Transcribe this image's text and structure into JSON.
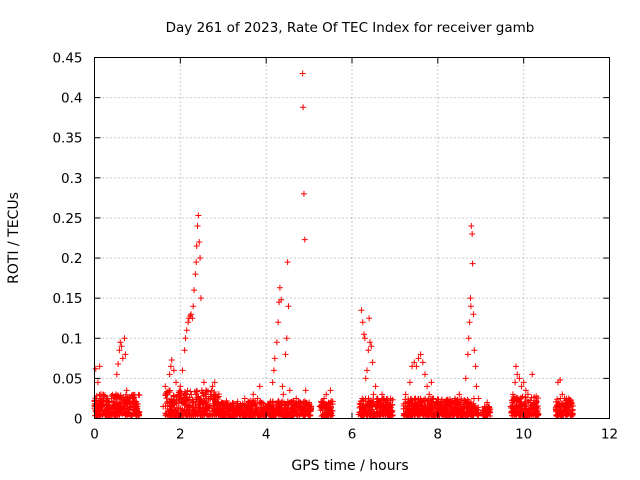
{
  "chart_data": {
    "type": "scatter",
    "title": "Day 261 of 2023, Rate Of TEC Index for receiver gamb",
    "xlabel": "GPS time / hours",
    "ylabel": "ROTI / TECUs",
    "xlim": [
      0,
      12
    ],
    "ylim": [
      0,
      0.45
    ],
    "xticks": [
      0,
      2,
      4,
      6,
      8,
      10,
      12
    ],
    "yticks": [
      0,
      0.05,
      0.1,
      0.15,
      0.2,
      0.25,
      0.3,
      0.35,
      0.4,
      0.45
    ],
    "xtick_labels": [
      "0",
      "2",
      "4",
      "6",
      "8",
      "10",
      "12"
    ],
    "ytick_labels": [
      "0",
      "0.05",
      "0.1",
      "0.15",
      "0.2",
      "0.25",
      "0.3",
      "0.35",
      "0.4",
      "0.45"
    ],
    "grid": true,
    "marker": "+",
    "color": "#ff0000",
    "series": [
      {
        "name": "ROTI",
        "points": [
          [
            0.0,
            0.012
          ],
          [
            0.03,
            0.062
          ],
          [
            0.05,
            0.025
          ],
          [
            0.08,
            0.045
          ],
          [
            0.1,
            0.018
          ],
          [
            0.12,
            0.065
          ],
          [
            0.15,
            0.03
          ],
          [
            0.18,
            0.015
          ],
          [
            0.22,
            0.022
          ],
          [
            0.25,
            0.01
          ],
          [
            0.3,
            0.018
          ],
          [
            0.35,
            0.012
          ],
          [
            0.4,
            0.025
          ],
          [
            0.45,
            0.015
          ],
          [
            0.5,
            0.03
          ],
          [
            0.52,
            0.055
          ],
          [
            0.55,
            0.068
          ],
          [
            0.58,
            0.085
          ],
          [
            0.6,
            0.095
          ],
          [
            0.63,
            0.09
          ],
          [
            0.66,
            0.075
          ],
          [
            0.7,
            0.1
          ],
          [
            0.72,
            0.08
          ],
          [
            0.75,
            0.035
          ],
          [
            0.8,
            0.02
          ],
          [
            0.85,
            0.015
          ],
          [
            0.9,
            0.025
          ],
          [
            0.95,
            0.02
          ],
          [
            1.0,
            0.015
          ],
          [
            1.6,
            0.015
          ],
          [
            1.65,
            0.04
          ],
          [
            1.7,
            0.03
          ],
          [
            1.75,
            0.055
          ],
          [
            1.78,
            0.065
          ],
          [
            1.8,
            0.073
          ],
          [
            1.85,
            0.06
          ],
          [
            1.9,
            0.045
          ],
          [
            1.95,
            0.03
          ],
          [
            2.0,
            0.04
          ],
          [
            2.05,
            0.06
          ],
          [
            2.1,
            0.085
          ],
          [
            2.12,
            0.1
          ],
          [
            2.15,
            0.11
          ],
          [
            2.18,
            0.12
          ],
          [
            2.2,
            0.125
          ],
          [
            2.23,
            0.128
          ],
          [
            2.25,
            0.13
          ],
          [
            2.28,
            0.125
          ],
          [
            2.3,
            0.14
          ],
          [
            2.32,
            0.16
          ],
          [
            2.35,
            0.18
          ],
          [
            2.37,
            0.195
          ],
          [
            2.38,
            0.215
          ],
          [
            2.4,
            0.24
          ],
          [
            2.42,
            0.253
          ],
          [
            2.44,
            0.22
          ],
          [
            2.46,
            0.2
          ],
          [
            2.48,
            0.15
          ],
          [
            2.5,
            0.035
          ],
          [
            2.55,
            0.045
          ],
          [
            2.6,
            0.035
          ],
          [
            2.65,
            0.025
          ],
          [
            2.7,
            0.03
          ],
          [
            2.75,
            0.04
          ],
          [
            2.8,
            0.045
          ],
          [
            2.85,
            0.02
          ],
          [
            2.9,
            0.012
          ],
          [
            3.0,
            0.01
          ],
          [
            3.1,
            0.015
          ],
          [
            3.2,
            0.012
          ],
          [
            3.3,
            0.018
          ],
          [
            3.4,
            0.01
          ],
          [
            3.5,
            0.025
          ],
          [
            3.6,
            0.02
          ],
          [
            3.7,
            0.03
          ],
          [
            3.8,
            0.025
          ],
          [
            3.85,
            0.04
          ],
          [
            3.9,
            0.02
          ],
          [
            4.0,
            0.015
          ],
          [
            4.1,
            0.02
          ],
          [
            4.15,
            0.045
          ],
          [
            4.18,
            0.06
          ],
          [
            4.2,
            0.075
          ],
          [
            4.25,
            0.095
          ],
          [
            4.28,
            0.12
          ],
          [
            4.3,
            0.145
          ],
          [
            4.32,
            0.163
          ],
          [
            4.35,
            0.148
          ],
          [
            4.38,
            0.04
          ],
          [
            4.4,
            0.03
          ],
          [
            4.45,
            0.08
          ],
          [
            4.48,
            0.1
          ],
          [
            4.5,
            0.195
          ],
          [
            4.52,
            0.14
          ],
          [
            4.55,
            0.035
          ],
          [
            4.6,
            0.02
          ],
          [
            4.7,
            0.025
          ],
          [
            4.8,
            0.02
          ],
          [
            4.85,
            0.43
          ],
          [
            4.86,
            0.388
          ],
          [
            4.88,
            0.28
          ],
          [
            4.9,
            0.223
          ],
          [
            4.92,
            0.035
          ],
          [
            5.0,
            0.02
          ],
          [
            5.25,
            0.015
          ],
          [
            5.3,
            0.02
          ],
          [
            5.35,
            0.025
          ],
          [
            5.4,
            0.03
          ],
          [
            5.45,
            0.02
          ],
          [
            5.5,
            0.035
          ],
          [
            5.55,
            0.018
          ],
          [
            6.2,
            0.015
          ],
          [
            6.22,
            0.135
          ],
          [
            6.25,
            0.12
          ],
          [
            6.28,
            0.105
          ],
          [
            6.3,
            0.1
          ],
          [
            6.32,
            0.05
          ],
          [
            6.35,
            0.06
          ],
          [
            6.38,
            0.085
          ],
          [
            6.4,
            0.125
          ],
          [
            6.42,
            0.095
          ],
          [
            6.45,
            0.09
          ],
          [
            6.48,
            0.07
          ],
          [
            6.5,
            0.03
          ],
          [
            6.55,
            0.04
          ],
          [
            6.6,
            0.025
          ],
          [
            6.7,
            0.03
          ],
          [
            6.8,
            0.02
          ],
          [
            6.9,
            0.025
          ],
          [
            7.2,
            0.012
          ],
          [
            7.25,
            0.03
          ],
          [
            7.3,
            0.02
          ],
          [
            7.35,
            0.045
          ],
          [
            7.4,
            0.065
          ],
          [
            7.45,
            0.07
          ],
          [
            7.5,
            0.065
          ],
          [
            7.55,
            0.075
          ],
          [
            7.6,
            0.08
          ],
          [
            7.65,
            0.07
          ],
          [
            7.7,
            0.055
          ],
          [
            7.75,
            0.04
          ],
          [
            7.8,
            0.03
          ],
          [
            7.85,
            0.045
          ],
          [
            7.9,
            0.025
          ],
          [
            8.0,
            0.02
          ],
          [
            8.1,
            0.018
          ],
          [
            8.2,
            0.015
          ],
          [
            8.3,
            0.02
          ],
          [
            8.4,
            0.025
          ],
          [
            8.5,
            0.03
          ],
          [
            8.6,
            0.015
          ],
          [
            8.65,
            0.05
          ],
          [
            8.7,
            0.08
          ],
          [
            8.72,
            0.1
          ],
          [
            8.74,
            0.12
          ],
          [
            8.76,
            0.15
          ],
          [
            8.77,
            0.14
          ],
          [
            8.78,
            0.24
          ],
          [
            8.8,
            0.23
          ],
          [
            8.81,
            0.193
          ],
          [
            8.83,
            0.13
          ],
          [
            8.85,
            0.085
          ],
          [
            8.88,
            0.065
          ],
          [
            8.9,
            0.04
          ],
          [
            8.95,
            0.025
          ],
          [
            9.05,
            0.01
          ],
          [
            9.1,
            0.015
          ],
          [
            9.15,
            0.02
          ],
          [
            9.2,
            0.012
          ],
          [
            9.7,
            0.015
          ],
          [
            9.75,
            0.03
          ],
          [
            9.8,
            0.045
          ],
          [
            9.82,
            0.065
          ],
          [
            9.85,
            0.055
          ],
          [
            9.9,
            0.05
          ],
          [
            9.95,
            0.04
          ],
          [
            10.0,
            0.045
          ],
          [
            10.05,
            0.035
          ],
          [
            10.1,
            0.03
          ],
          [
            10.15,
            0.02
          ],
          [
            10.2,
            0.055
          ],
          [
            10.25,
            0.015
          ],
          [
            10.75,
            0.012
          ],
          [
            10.8,
            0.045
          ],
          [
            10.85,
            0.048
          ],
          [
            10.9,
            0.03
          ],
          [
            10.95,
            0.025
          ],
          [
            11.0,
            0.02
          ],
          [
            11.05,
            0.025
          ],
          [
            11.1,
            0.015
          ]
        ],
        "dense_bands": [
          {
            "x": [
              0.0,
              1.05
            ],
            "y": [
              0.003,
              0.03
            ]
          },
          {
            "x": [
              1.65,
              2.9
            ],
            "y": [
              0.003,
              0.035
            ]
          },
          {
            "x": [
              2.9,
              5.05
            ],
            "y": [
              0.003,
              0.022
            ]
          },
          {
            "x": [
              5.25,
              5.55
            ],
            "y": [
              0.003,
              0.022
            ]
          },
          {
            "x": [
              6.15,
              6.95
            ],
            "y": [
              0.003,
              0.025
            ]
          },
          {
            "x": [
              7.2,
              8.95
            ],
            "y": [
              0.003,
              0.025
            ]
          },
          {
            "x": [
              9.05,
              9.22
            ],
            "y": [
              0.003,
              0.015
            ]
          },
          {
            "x": [
              9.7,
              10.35
            ],
            "y": [
              0.003,
              0.028
            ]
          },
          {
            "x": [
              10.75,
              11.15
            ],
            "y": [
              0.003,
              0.025
            ]
          }
        ]
      }
    ]
  }
}
